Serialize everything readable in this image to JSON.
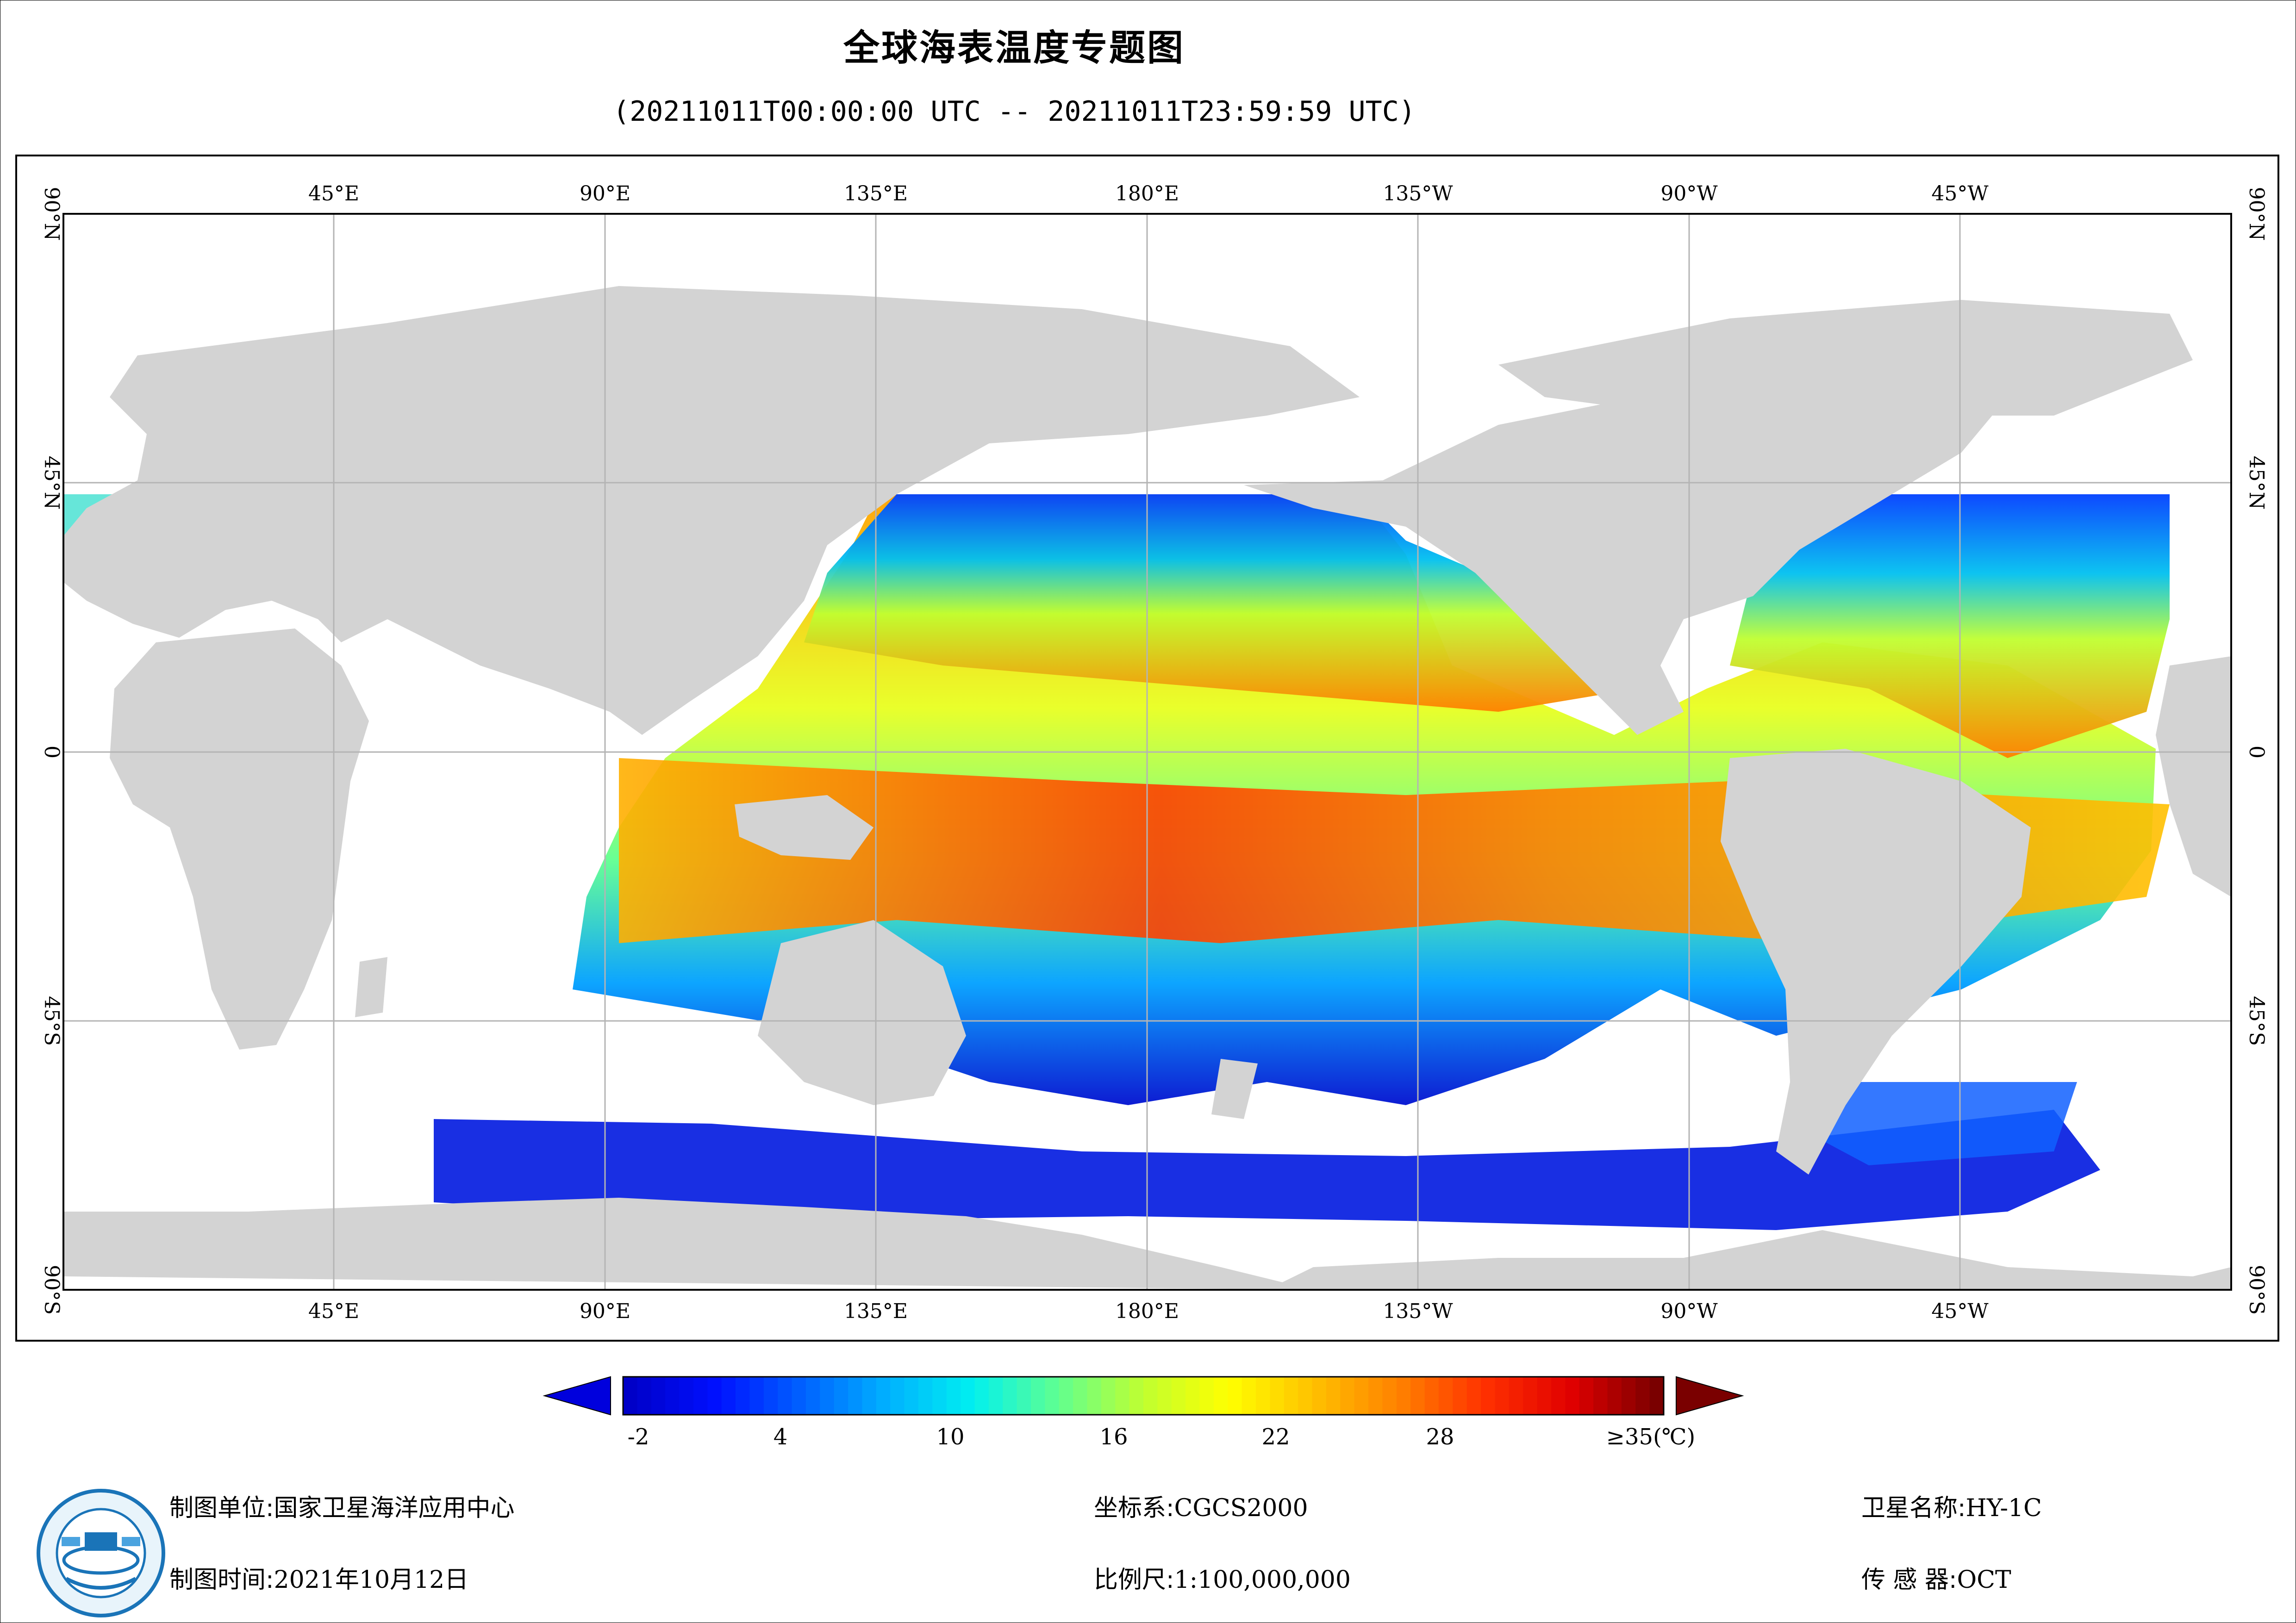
{
  "header": {
    "title": "全球海表温度专题图",
    "time_range": "(20211011T00:00:00 UTC -- 20211011T23:59:59 UTC)"
  },
  "map": {
    "lon_labels_top": [
      "45°E",
      "90°E",
      "135°E",
      "180°E",
      "135°W",
      "90°W",
      "45°W"
    ],
    "lon_labels_bottom": [
      "45°E",
      "90°E",
      "135°E",
      "180°E",
      "135°W",
      "90°W",
      "45°W"
    ],
    "lat_labels": [
      "90°N",
      "45°N",
      "0",
      "45°S",
      "90°S"
    ],
    "land_color": "#d3d3d3",
    "no_data_color": "#ffffff"
  },
  "colorbar": {
    "ticks": [
      "-2",
      "4",
      "10",
      "16",
      "22",
      "28",
      "≥35(℃)"
    ],
    "min_arrow_color": "#0000dd",
    "max_arrow_color": "#7a0000",
    "colors": [
      "#0000c8",
      "#0010ff",
      "#0060ff",
      "#00b0ff",
      "#00f0f0",
      "#60ff90",
      "#c0ff30",
      "#ffff00",
      "#ffc000",
      "#ff8000",
      "#ff3000",
      "#e00000",
      "#7a0000"
    ]
  },
  "footer": {
    "unit_label": "制图单位:",
    "unit_value": "国家卫星海洋应用中心",
    "time_label": "制图时间:",
    "time_value": "2021年10月12日",
    "coord_label": "坐标系:",
    "coord_value": "CGCS2000",
    "scale_label": "比例尺:",
    "scale_value": "1:100,000,000",
    "satellite_label": "卫星名称:",
    "satellite_value": "HY-1C",
    "sensor_label": "传 感 器:",
    "sensor_value": "OCT"
  }
}
